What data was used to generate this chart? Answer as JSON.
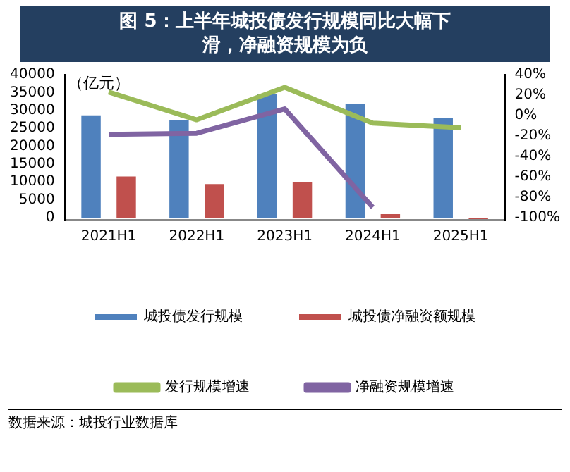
{
  "chart_data": {
    "type": "bar",
    "title": "图 5：上半年城投债发行规模同比大幅下滑，净融资规模为负",
    "ylabel": "（亿元）",
    "categories": [
      "2021H1",
      "2022H1",
      "2023H1",
      "2024H1",
      "2025H1"
    ],
    "series": [
      {
        "name": "城投债发行规模",
        "color": "#4f81bd",
        "values": [
          28600,
          27200,
          34600,
          31700,
          27800
        ]
      },
      {
        "name": "城投债净融资额规模",
        "color": "#c0504d",
        "values": [
          11500,
          9400,
          9900,
          1000,
          -400
        ]
      },
      {
        "name": "发行规模增速",
        "type": "line",
        "axis": "y2",
        "color": "#9bbb59",
        "values": [
          23,
          -4.2,
          27.6,
          -7.5,
          -11.9
        ]
      },
      {
        "name": "净融资规模增速",
        "type": "line",
        "axis": "y2",
        "color": "#8064a2",
        "values": [
          -18.5,
          -17.4,
          6.5,
          -89.9,
          null
        ]
      }
    ],
    "ylim": [
      -600,
      40000
    ],
    "yticks": [
      0,
      5000,
      10000,
      15000,
      20000,
      25000,
      30000,
      35000,
      40000
    ],
    "y2lim": [
      -102.1,
      40
    ],
    "y2ticks": [
      {
        "value": -100,
        "label": "-100%"
      },
      {
        "value": -80,
        "label": "-80%"
      },
      {
        "value": -60,
        "label": "-60%"
      },
      {
        "value": -40,
        "label": "-40%"
      },
      {
        "value": -20,
        "label": "-20%"
      },
      {
        "value": 0,
        "label": "0%"
      },
      {
        "value": 20,
        "label": "20%"
      },
      {
        "value": 40,
        "label": "40%"
      }
    ],
    "grid": false,
    "legend": "bottom",
    "marker": "none",
    "line_style": "solid",
    "annotations": [
      "数据来源：城投行业数据库"
    ]
  }
}
